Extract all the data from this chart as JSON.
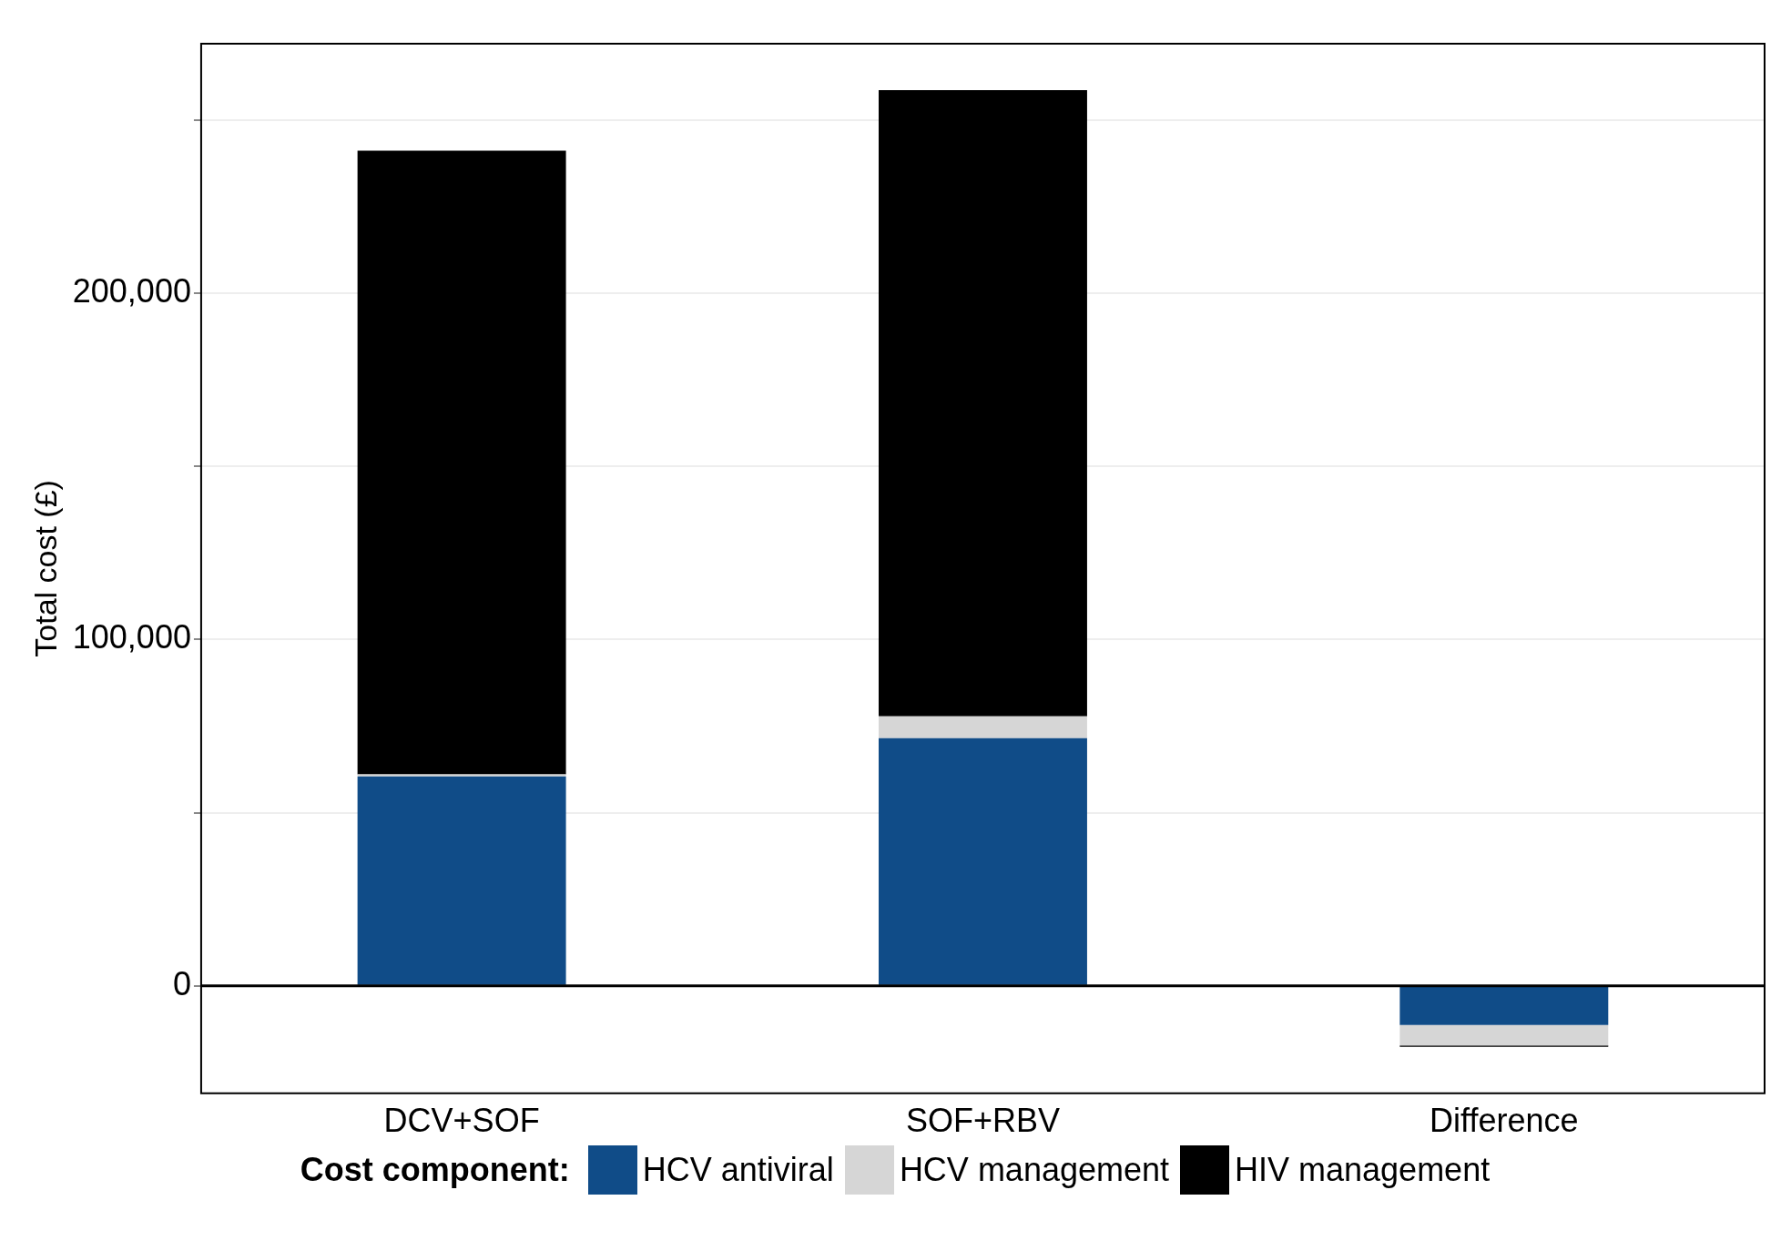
{
  "chart_data": {
    "type": "bar",
    "stacked": true,
    "ylabel": "Total cost (£)",
    "legend_title": "Cost component:",
    "legend": "bottom",
    "grid": "y",
    "categories": [
      "DCV+SOF",
      "SOF+RBV",
      "Difference"
    ],
    "series": [
      {
        "name": "HCV antiviral",
        "color": "#104c88",
        "values": [
          60500,
          71500,
          -11300
        ]
      },
      {
        "name": "HCV management",
        "color": "#d6d6d6",
        "values": [
          600,
          6300,
          -5900
        ]
      },
      {
        "name": "HIV management",
        "color": "#000000",
        "values": [
          180000,
          180800,
          -400
        ]
      }
    ],
    "ylim": [
      -31000,
      272000
    ],
    "yticks": [
      0,
      {
        "value": 50000,
        "label": null
      },
      {
        "value": 100000,
        "label": "100,000"
      },
      {
        "value": 150000,
        "label": null
      },
      {
        "value": 200000,
        "label": "200,000"
      },
      {
        "value": 250000,
        "label": null
      }
    ],
    "ref_lines": [
      {
        "axis": "y",
        "value": 0,
        "color": "#000000"
      }
    ]
  }
}
